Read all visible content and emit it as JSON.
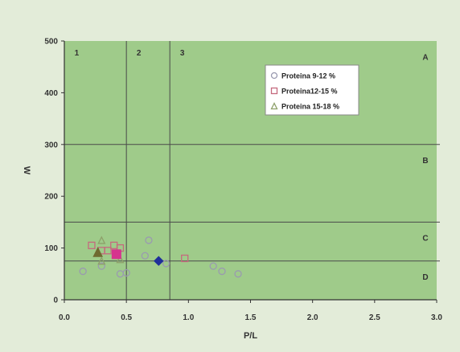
{
  "chart_data": {
    "type": "scatter",
    "title": "",
    "xlabel": "P/L",
    "ylabel": "W",
    "xlim": [
      0,
      3.0
    ],
    "ylim": [
      0,
      500
    ],
    "x_ticks": [
      "0.0",
      "0.5",
      "1.0",
      "1.5",
      "2.0",
      "2.5",
      "3.0"
    ],
    "y_ticks": [
      "0",
      "100",
      "200",
      "300",
      "400",
      "500"
    ],
    "grid": false,
    "legend_position": "top-right",
    "vertical_lines": [
      0.5,
      0.85
    ],
    "horizontal_lines": [
      75,
      150,
      300
    ],
    "zone_labels": {
      "columns": [
        {
          "text": "1",
          "x": 0.1
        },
        {
          "text": "2",
          "x": 0.6
        },
        {
          "text": "3",
          "x": 0.95
        }
      ],
      "rows": [
        {
          "text": "A",
          "y": 470
        },
        {
          "text": "B",
          "y": 270
        },
        {
          "text": "C",
          "y": 120
        },
        {
          "text": "D",
          "y": 45
        }
      ]
    },
    "series": [
      {
        "name": "Proteina 9-12 %",
        "marker": "circle",
        "color": "#9a9ab0",
        "points": [
          [
            0.15,
            55
          ],
          [
            0.3,
            65
          ],
          [
            0.45,
            50
          ],
          [
            0.5,
            52
          ],
          [
            0.65,
            85
          ],
          [
            0.68,
            115
          ],
          [
            0.82,
            70
          ],
          [
            1.2,
            65
          ],
          [
            1.27,
            55
          ],
          [
            1.4,
            50
          ]
        ]
      },
      {
        "name": "Proteina12-15 %",
        "marker": "square",
        "color": "#c56a7e",
        "points": [
          [
            0.22,
            105
          ],
          [
            0.3,
            95
          ],
          [
            0.35,
            95
          ],
          [
            0.4,
            105
          ],
          [
            0.45,
            100
          ],
          [
            0.97,
            80
          ]
        ]
      },
      {
        "name": "Proteina 15-18 %",
        "marker": "triangle",
        "color": "#8ea06a",
        "points": [
          [
            0.3,
            115
          ],
          [
            0.3,
            75
          ],
          [
            0.45,
            78
          ]
        ]
      }
    ],
    "highlight_points": [
      {
        "marker": "triangle",
        "x": 0.27,
        "y": 92,
        "color": "#6f6a30"
      },
      {
        "marker": "square",
        "x": 0.42,
        "y": 88,
        "color": "#d6338e"
      },
      {
        "marker": "diamond",
        "x": 0.76,
        "y": 75,
        "color": "#1f2f9a"
      }
    ],
    "colors": {
      "outer_background": "#e3ecd9",
      "plot_background": "#9fcb8a",
      "lines": "#4a4a4a",
      "legend_background": "#ffffff"
    }
  }
}
